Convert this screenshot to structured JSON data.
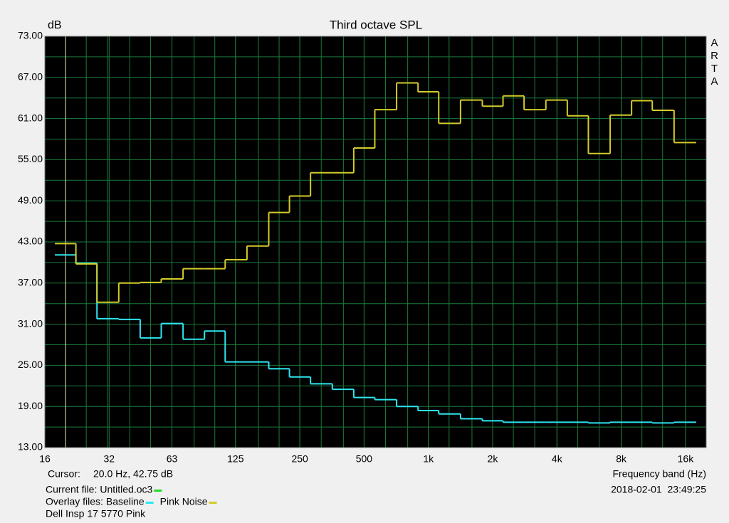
{
  "chart_data": {
    "type": "step",
    "title": "Third octave SPL",
    "y_label": "dB",
    "x_label": "Frequency band (Hz)",
    "brand": "ARTA",
    "log_x": true,
    "grid": true,
    "background": "#000000",
    "grid_color": "#1c7a3c",
    "xlim": [
      16,
      20000
    ],
    "ylim": [
      13,
      73
    ],
    "xticks": [
      16,
      32,
      63,
      125,
      250,
      500,
      {
        "value": 1000,
        "label": "1k"
      },
      {
        "value": 2000,
        "label": "2k"
      },
      {
        "value": 4000,
        "label": "4k"
      },
      {
        "value": 8000,
        "label": "8k"
      },
      {
        "value": 16000,
        "label": "16k"
      }
    ],
    "yticks": [
      {
        "value": 13,
        "label": "13.00"
      },
      {
        "value": 19,
        "label": "19.00"
      },
      {
        "value": 25,
        "label": "25.00"
      },
      {
        "value": 31,
        "label": "31.00"
      },
      {
        "value": 37,
        "label": "37.00"
      },
      {
        "value": 43,
        "label": "43.00"
      },
      {
        "value": 49,
        "label": "49.00"
      },
      {
        "value": 55,
        "label": "55.00"
      },
      {
        "value": 61,
        "label": "61.00"
      },
      {
        "value": 67,
        "label": "67.00"
      },
      {
        "value": 73,
        "label": "73.00"
      }
    ],
    "x": [
      20,
      25,
      31.5,
      40,
      50,
      63,
      80,
      100,
      125,
      160,
      200,
      250,
      315,
      400,
      500,
      630,
      800,
      1000,
      1250,
      1600,
      2000,
      2500,
      3150,
      4000,
      5000,
      6300,
      8000,
      10000,
      12500,
      16000
    ],
    "series": [
      {
        "name": "Baseline",
        "color": "#2ee6f0",
        "values": [
          41.1,
          39.9,
          31.8,
          31.7,
          29.0,
          31.1,
          28.8,
          30.0,
          25.5,
          25.5,
          24.5,
          23.3,
          22.3,
          21.5,
          20.3,
          20.0,
          19.0,
          18.4,
          17.9,
          17.2,
          16.9,
          16.7,
          16.7,
          16.7,
          16.7,
          16.6,
          16.7,
          16.7,
          16.6,
          16.7
        ]
      },
      {
        "name": "Pink Noise",
        "color": "#d4cc2a",
        "values": [
          42.75,
          39.8,
          34.2,
          37.0,
          37.1,
          37.6,
          39.1,
          39.1,
          40.4,
          42.4,
          47.3,
          49.7,
          53.1,
          53.1,
          56.7,
          62.3,
          66.2,
          64.9,
          60.3,
          63.7,
          62.8,
          64.3,
          62.3,
          63.7,
          61.4,
          55.9,
          61.5,
          63.6,
          62.2,
          57.5
        ]
      }
    ],
    "cursor": {
      "label": "Cursor:",
      "text": "20.0 Hz, 42.75 dB",
      "x": 20,
      "color": "#e8e0b0"
    },
    "current_file": {
      "label": "Current file:",
      "name": "Untitled.oc3",
      "color": "#22dd22"
    },
    "overlay_label": "Overlay files:",
    "note": "Dell Insp 17 5770 Pink",
    "timestamp": "2018-02-01  23:49:25"
  }
}
